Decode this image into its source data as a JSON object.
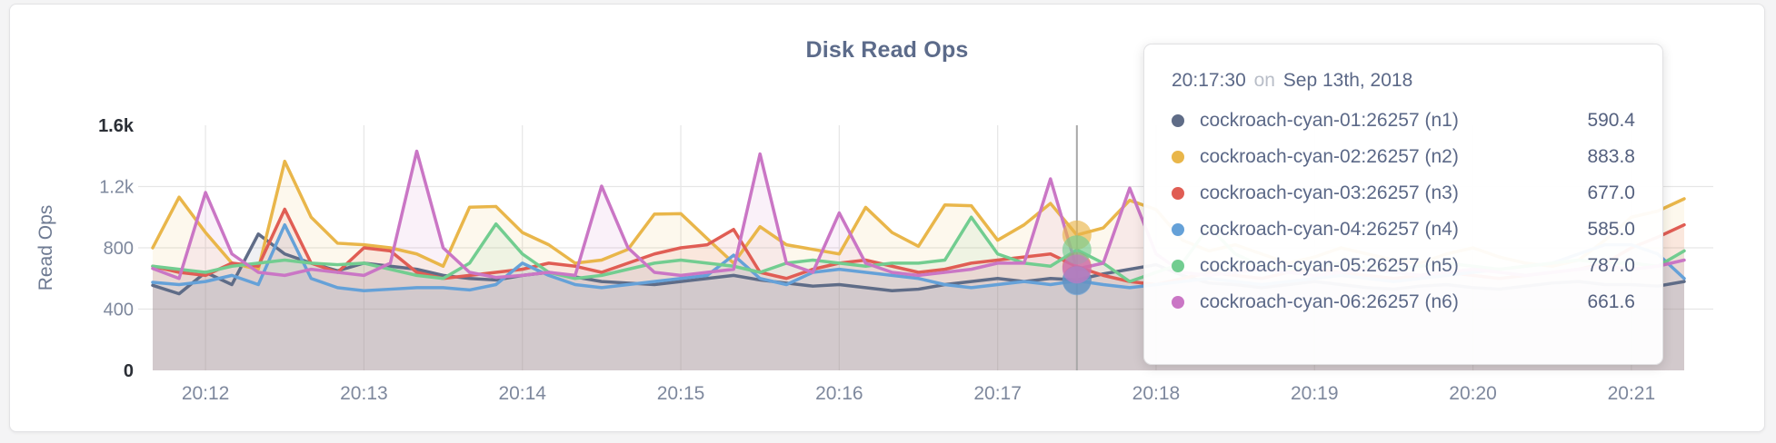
{
  "title": "Disk Read Ops",
  "tooltip": {
    "time": "20:17:30",
    "connector": "on",
    "date": "Sep 13th, 2018",
    "values": [
      "590.4",
      "883.8",
      "677.0",
      "585.0",
      "787.0",
      "661.6"
    ]
  },
  "chart_data": {
    "type": "line",
    "title": "Disk Read Ops",
    "ylabel": "Read Ops",
    "ylim": [
      0,
      1600
    ],
    "grid": true,
    "start_time": "20:11:40",
    "interval_seconds": 10,
    "highlight_index": 35,
    "highlight_time": "20:17:30",
    "x_tick_labels": [
      "20:12",
      "20:13",
      "20:14",
      "20:15",
      "20:16",
      "20:17",
      "20:18",
      "20:19",
      "20:20",
      "20:21"
    ],
    "x_tick_indices": [
      2,
      8,
      14,
      20,
      26,
      32,
      38,
      44,
      50,
      56
    ],
    "y_ticks": [
      {
        "value": 0,
        "label": "0",
        "emphasis": true
      },
      {
        "value": 400,
        "label": "400",
        "emphasis": false
      },
      {
        "value": 800,
        "label": "800",
        "emphasis": false
      },
      {
        "value": 1200,
        "label": "1.2k",
        "emphasis": false
      },
      {
        "value": 1600,
        "label": "1.6k",
        "emphasis": true
      }
    ],
    "colors": {
      "n1": "#5f6c87",
      "n2": "#e9b64a",
      "n3": "#e05d54",
      "n4": "#65a1d8",
      "n5": "#72cd90",
      "n6": "#ca76c5"
    },
    "series": [
      {
        "name": "cockroach-cyan-01:26257 (n1)",
        "color": "#5f6c87",
        "highlight_value": 590.4,
        "values": [
          555,
          500,
          640,
          560,
          890,
          760,
          700,
          650,
          700,
          680,
          660,
          620,
          600,
          590,
          620,
          640,
          610,
          580,
          570,
          560,
          580,
          600,
          620,
          590,
          570,
          550,
          560,
          540,
          520,
          530,
          560,
          580,
          600,
          580,
          600,
          590.4,
          630,
          660,
          690,
          620,
          570,
          560,
          540,
          560,
          580,
          560,
          540,
          530,
          550,
          560,
          540,
          530,
          550,
          570,
          580,
          560,
          560,
          550,
          580
        ]
      },
      {
        "name": "cockroach-cyan-02:26257 (n2)",
        "color": "#e9b64a",
        "highlight_value": 883.8,
        "values": [
          800,
          1131,
          900,
          700,
          660,
          1365,
          1000,
          830,
          820,
          800,
          760,
          680,
          1065,
          1070,
          900,
          820,
          700,
          720,
          790,
          1020,
          1023,
          860,
          700,
          938,
          820,
          790,
          760,
          1064,
          900,
          810,
          1080,
          1075,
          850,
          950,
          1090,
          883.8,
          930,
          1110,
          1050,
          850,
          780,
          820,
          760,
          700,
          740,
          800,
          760,
          720,
          700,
          760,
          800,
          740,
          700,
          680,
          720,
          850,
          1000,
          1040,
          1120
        ]
      },
      {
        "name": "cockroach-cyan-03:26257 (n3)",
        "color": "#e05d54",
        "highlight_value": 677.0,
        "values": [
          680,
          640,
          620,
          700,
          680,
          1052,
          700,
          640,
          800,
          780,
          640,
          600,
          620,
          640,
          660,
          700,
          680,
          640,
          700,
          760,
          800,
          820,
          920,
          640,
          600,
          660,
          700,
          720,
          680,
          640,
          660,
          700,
          720,
          740,
          760,
          677,
          620,
          580,
          560,
          600,
          640,
          620,
          600,
          640,
          660,
          640,
          620,
          600,
          620,
          640,
          620,
          600,
          620,
          640,
          660,
          700,
          800,
          870,
          950
        ]
      },
      {
        "name": "cockroach-cyan-04:26257 (n4)",
        "color": "#65a1d8",
        "highlight_value": 585.0,
        "values": [
          575,
          560,
          580,
          620,
          560,
          950,
          600,
          540,
          520,
          530,
          540,
          540,
          525,
          560,
          700,
          620,
          560,
          540,
          560,
          580,
          600,
          620,
          752,
          600,
          560,
          640,
          660,
          640,
          620,
          600,
          560,
          540,
          560,
          580,
          560,
          585,
          560,
          540,
          560,
          580,
          600,
          580,
          560,
          580,
          600,
          620,
          600,
          580,
          600,
          620,
          640,
          660,
          680,
          700,
          760,
          820,
          820,
          760,
          600
        ]
      },
      {
        "name": "cockroach-cyan-05:26257 (n5)",
        "color": "#72cd90",
        "highlight_value": 787.0,
        "values": [
          680,
          660,
          640,
          680,
          700,
          720,
          700,
          690,
          700,
          660,
          620,
          600,
          700,
          956,
          760,
          640,
          600,
          620,
          660,
          700,
          720,
          700,
          680,
          640,
          700,
          720,
          700,
          680,
          700,
          700,
          720,
          1000,
          760,
          700,
          680,
          787,
          700,
          580,
          640,
          700,
          940,
          760,
          680,
          660,
          680,
          700,
          680,
          660,
          680,
          700,
          680,
          660,
          680,
          700,
          720,
          700,
          700,
          680,
          780
        ]
      },
      {
        "name": "cockroach-cyan-06:26257 (n6)",
        "color": "#ca76c5",
        "highlight_value": 661.6,
        "values": [
          665,
          600,
          1161,
          760,
          640,
          620,
          660,
          640,
          620,
          700,
          1431,
          800,
          640,
          607,
          620,
          640,
          620,
          1203,
          800,
          640,
          620,
          640,
          660,
          1413,
          700,
          640,
          1028,
          700,
          640,
          620,
          640,
          660,
          700,
          700,
          1250,
          661.6,
          700,
          1190,
          760,
          640,
          620,
          640,
          660,
          640,
          620,
          640,
          660,
          640,
          620,
          640,
          660,
          640,
          620,
          640,
          660,
          680,
          660,
          680,
          720
        ]
      }
    ]
  },
  "layout_colors": {
    "grid_line": "#e6e6e6",
    "crosshair": "#a8a8a8",
    "tick_label": "#7e889d",
    "tick_label_emphasis": "#2b2f36",
    "axis_title": "#6e7a92"
  }
}
